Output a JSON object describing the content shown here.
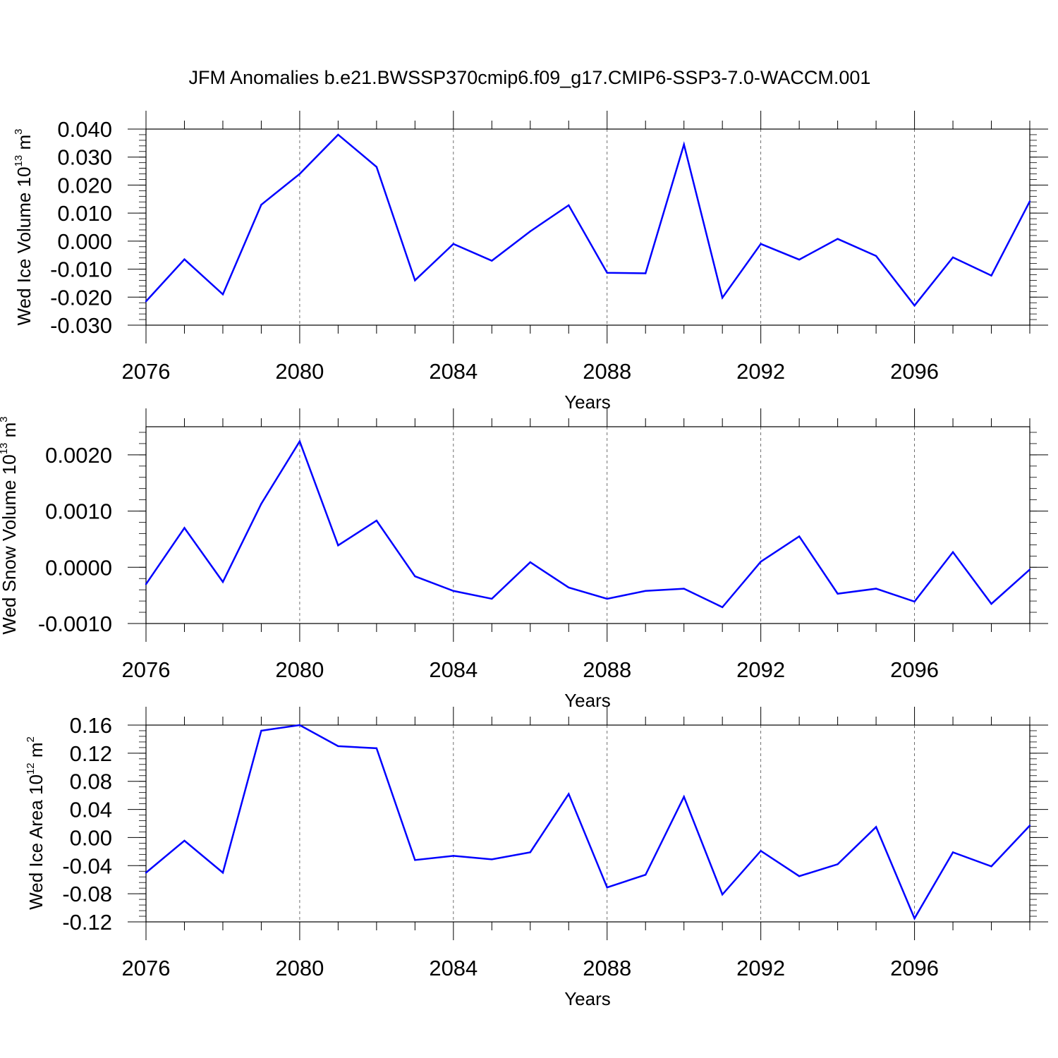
{
  "figure": {
    "title": "JFM Anomalies b.e21.BWSSP370cmip6.f09_g17.CMIP6-SSP3-7.0-WACCM.001"
  },
  "colors": {
    "series": "#0000ff",
    "axes": "#000000",
    "grid": "#000000",
    "background": "#ffffff"
  },
  "chart_data": [
    {
      "type": "line",
      "ylabel": {
        "main": "Wed Ice Volume 10",
        "exp": "13",
        "unit": " m",
        "unit_exp": "3"
      },
      "xlabel": "Years",
      "xlim": [
        2076,
        2099
      ],
      "ylim": [
        -0.03,
        0.04
      ],
      "grid": "vertical dashed lines at major x ticks",
      "x_ticks": [
        2076,
        2080,
        2084,
        2088,
        2092,
        2096
      ],
      "x_tick_labels": [
        "2076",
        "2080",
        "2084",
        "2088",
        "2092",
        "2096"
      ],
      "y_ticks": [
        -0.03,
        -0.02,
        -0.01,
        0.0,
        0.01,
        0.02,
        0.03,
        0.04
      ],
      "y_tick_labels": [
        "-0.030",
        "-0.020",
        "-0.010",
        "0.000",
        "0.010",
        "0.020",
        "0.030",
        "0.040"
      ],
      "x": [
        2076,
        2077,
        2078,
        2079,
        2080,
        2081,
        2082,
        2083,
        2084,
        2085,
        2086,
        2087,
        2088,
        2089,
        2090,
        2091,
        2092,
        2093,
        2094,
        2095,
        2096,
        2097,
        2098,
        2099
      ],
      "values": [
        -0.0215,
        -0.0065,
        -0.019,
        0.013,
        0.024,
        0.038,
        0.0265,
        -0.014,
        -0.001,
        -0.007,
        0.0035,
        0.0128,
        -0.0113,
        -0.0115,
        0.0345,
        -0.0202,
        -0.001,
        -0.0066,
        0.0008,
        -0.0053,
        -0.023,
        -0.0058,
        -0.0123,
        0.0142
      ]
    },
    {
      "type": "line",
      "ylabel": {
        "main": "Wed Snow Volume 10",
        "exp": "13",
        "unit": " m",
        "unit_exp": "3"
      },
      "xlabel": "Years",
      "xlim": [
        2076,
        2099
      ],
      "ylim": [
        -0.001,
        0.0025
      ],
      "grid": "vertical dashed lines at major x ticks",
      "x_ticks": [
        2076,
        2080,
        2084,
        2088,
        2092,
        2096
      ],
      "x_tick_labels": [
        "2076",
        "2080",
        "2084",
        "2088",
        "2092",
        "2096"
      ],
      "y_ticks": [
        -0.001,
        0.0,
        0.001,
        0.002
      ],
      "y_tick_labels": [
        "-0.0010",
        "0.0000",
        "0.0010",
        "0.0020"
      ],
      "x": [
        2076,
        2077,
        2078,
        2079,
        2080,
        2081,
        2082,
        2083,
        2084,
        2085,
        2086,
        2087,
        2088,
        2089,
        2090,
        2091,
        2092,
        2093,
        2094,
        2095,
        2096,
        2097,
        2098,
        2099
      ],
      "values": [
        -0.0003,
        0.0007,
        -0.00026,
        0.00113,
        0.00224,
        0.00039,
        0.00083,
        -0.00016,
        -0.00042,
        -0.00056,
        9e-05,
        -0.00036,
        -0.00056,
        -0.00042,
        -0.00038,
        -0.00071,
        0.0001,
        0.00055,
        -0.00047,
        -0.00038,
        -0.00061,
        0.00027,
        -0.00065,
        -4e-05
      ]
    },
    {
      "type": "line",
      "ylabel": {
        "main": "Wed Ice Area 10",
        "exp": "12",
        "unit": " m",
        "unit_exp": "2"
      },
      "xlabel": "Years",
      "xlim": [
        2076,
        2099
      ],
      "ylim": [
        -0.12,
        0.16
      ],
      "grid": "vertical dashed lines at major x ticks",
      "x_ticks": [
        2076,
        2080,
        2084,
        2088,
        2092,
        2096
      ],
      "x_tick_labels": [
        "2076",
        "2080",
        "2084",
        "2088",
        "2092",
        "2096"
      ],
      "y_ticks": [
        -0.12,
        -0.08,
        -0.04,
        0.0,
        0.04,
        0.08,
        0.12,
        0.16
      ],
      "y_tick_labels": [
        "-0.12",
        "-0.08",
        "-0.04",
        "0.00",
        "0.04",
        "0.08",
        "0.12",
        "0.16"
      ],
      "x": [
        2076,
        2077,
        2078,
        2079,
        2080,
        2081,
        2082,
        2083,
        2084,
        2085,
        2086,
        2087,
        2088,
        2089,
        2090,
        2091,
        2092,
        2093,
        2094,
        2095,
        2096,
        2097,
        2098,
        2099
      ],
      "values": [
        -0.05,
        -0.0045,
        -0.05,
        0.152,
        0.16,
        0.13,
        0.127,
        -0.032,
        -0.026,
        -0.031,
        -0.021,
        0.062,
        -0.071,
        -0.053,
        0.058,
        -0.081,
        -0.019,
        -0.055,
        -0.038,
        0.015,
        -0.115,
        -0.021,
        -0.041,
        0.017
      ]
    }
  ]
}
